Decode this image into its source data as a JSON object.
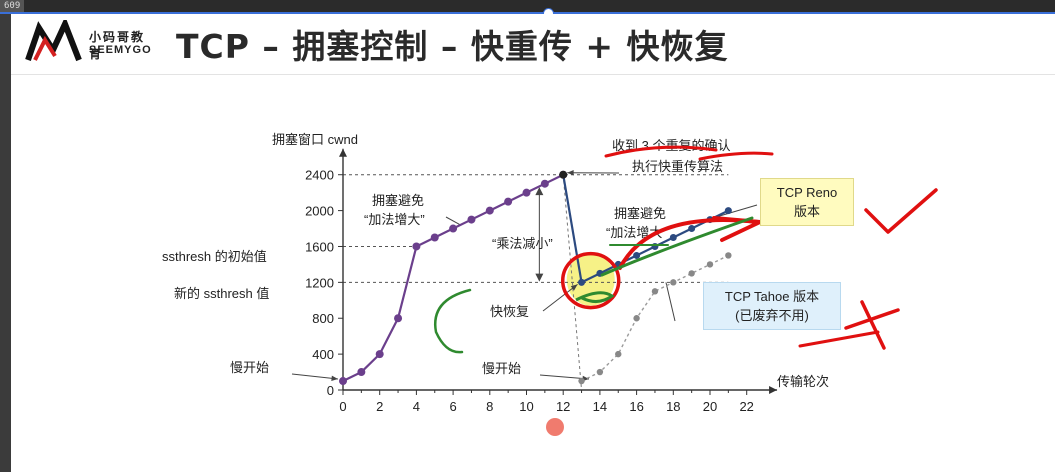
{
  "player": {
    "corner_label": "609"
  },
  "header": {
    "logo_cn": "小码哥教育",
    "logo_en": "SEEMYGO",
    "title": "TCP – 拥塞控制 – 快重传 + 快恢复"
  },
  "annotations": {
    "ylabel": "拥塞窗口 cwnd",
    "xlabel": "传输轮次",
    "recv_dup": "收到 3 个重复的确认",
    "exec_fast": "执行快重传算法",
    "ca1_a": "拥塞避免",
    "ca1_b": "“加法增大”",
    "ca2_a": "拥塞避免",
    "ca2_b": "“加法增大”",
    "mult_dec": "“乘法减小”",
    "fast_recovery": "快恢复",
    "slow_start1": "慢开始",
    "slow_start2": "慢开始",
    "ssthresh_init": "ssthresh 的初始值",
    "ssthresh_new": "新的 ssthresh 值",
    "reno_line1": "TCP Reno",
    "reno_line2": "版本",
    "tahoe_line1": "TCP Tahoe 版本",
    "tahoe_line2": "(已废弃不用)"
  },
  "colors": {
    "series_main": "#6b3f8c",
    "reno_tail": "#2c4a80",
    "tahoe": "#9a9a9a",
    "green_mark": "#2f8a2f",
    "red_mark": "#e01010",
    "highlight": "#f5f07a"
  },
  "chart_data": {
    "type": "line",
    "xlabel": "传输轮次",
    "ylabel": "拥塞窗口 cwnd",
    "xlim": [
      0,
      23
    ],
    "ylim": [
      0,
      2600
    ],
    "x_ticks": [
      0,
      2,
      4,
      6,
      8,
      10,
      12,
      14,
      16,
      18,
      20,
      22
    ],
    "y_ticks": [
      0,
      400,
      800,
      1200,
      1600,
      2000,
      2400
    ],
    "series": [
      {
        "name": "",
        "x": [
          0,
          1,
          2,
          3,
          4,
          5,
          6,
          7,
          8,
          9,
          10,
          11,
          12
        ],
        "y": [
          100,
          200,
          400,
          800,
          1600,
          1700,
          1800,
          1900,
          2000,
          2100,
          2200,
          2300,
          2400
        ]
      },
      {
        "name": "TCP Reno",
        "x": [
          13,
          14,
          15,
          16,
          17,
          18,
          19,
          20,
          21
        ],
        "y": [
          1200,
          1300,
          1400,
          1500,
          1600,
          1700,
          1800,
          1900,
          2000
        ]
      },
      {
        "name": "TCP Tahoe",
        "x": [
          13,
          14,
          15,
          16,
          17,
          18,
          19,
          20,
          21
        ],
        "y": [
          100,
          200,
          400,
          800,
          1100,
          1200,
          1300,
          1400,
          1500
        ]
      }
    ]
  }
}
